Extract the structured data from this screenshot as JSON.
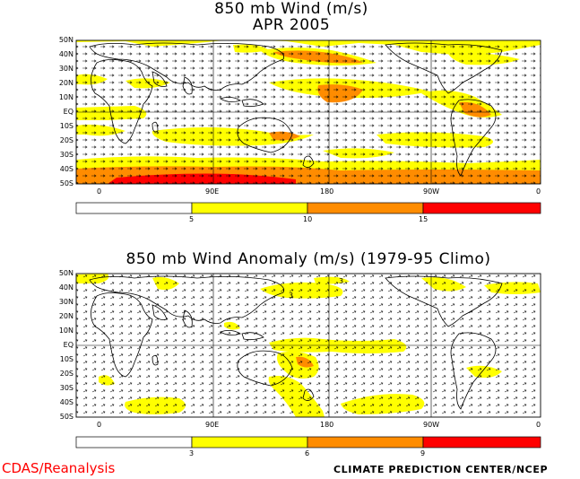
{
  "panel1": {
    "title_line1": "850 mb Wind (m/s)",
    "title_line2": "APR 2005",
    "lat_labels": [
      "50N",
      "40N",
      "30N",
      "20N",
      "10N",
      "EQ",
      "10S",
      "20S",
      "30S",
      "40S",
      "50S"
    ],
    "lon_labels": [
      "0",
      "90E",
      "180",
      "90W",
      "0"
    ],
    "colorbar": {
      "ticks": [
        "5",
        "10",
        "15"
      ],
      "colors": [
        "#ffffff",
        "#ffff00",
        "#ff8c00",
        "#ff0000"
      ]
    }
  },
  "panel2": {
    "title": "850 mb Wind Anomaly (m/s) (1979-95 Climo)",
    "lat_labels": [
      "50N",
      "40N",
      "30N",
      "20N",
      "10N",
      "EQ",
      "10S",
      "20S",
      "30S",
      "40S",
      "50S"
    ],
    "lon_labels": [
      "0",
      "90E",
      "180",
      "90W",
      "0"
    ],
    "contour_labels": [
      "3",
      "3"
    ],
    "colorbar": {
      "ticks": [
        "3",
        "6",
        "9"
      ],
      "colors": [
        "#ffffff",
        "#ffff00",
        "#ff8c00",
        "#ff0000"
      ]
    }
  },
  "footer": {
    "left": "CDAS/Reanalysis",
    "right": "CLIMATE PREDICTION CENTER/NCEP"
  },
  "colors": {
    "shade_low": "#ffff00",
    "shade_mid": "#ff8c00",
    "shade_high": "#ff0000",
    "coast": "#000000"
  }
}
